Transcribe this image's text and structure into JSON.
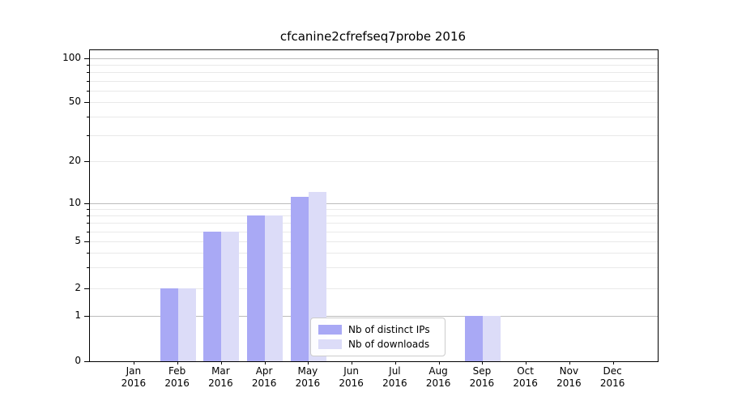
{
  "figure": {
    "background": "#ffffff"
  },
  "chart_data": {
    "type": "bar",
    "title": "cfcanine2cfrefseq7probe 2016",
    "xlabel": "",
    "ylabel": "",
    "categories": [
      "Jan 2016",
      "Feb 2016",
      "Mar 2016",
      "Apr 2016",
      "May 2016",
      "Jun 2016",
      "Jul 2016",
      "Aug 2016",
      "Sep 2016",
      "Oct 2016",
      "Nov 2016",
      "Dec 2016"
    ],
    "x_tick_line1": [
      "Jan",
      "Feb",
      "Mar",
      "Apr",
      "May",
      "Jun",
      "Jul",
      "Aug",
      "Sep",
      "Oct",
      "Nov",
      "Dec"
    ],
    "x_tick_line2": [
      "2016",
      "2016",
      "2016",
      "2016",
      "2016",
      "2016",
      "2016",
      "2016",
      "2016",
      "2016",
      "2016",
      "2016"
    ],
    "series": [
      {
        "name": "Nb of distinct IPs",
        "color": "#a9a9f5",
        "values": [
          0,
          2,
          6,
          8,
          11,
          0,
          0,
          0,
          1,
          0,
          0,
          0
        ]
      },
      {
        "name": "Nb of downloads",
        "color": "#dcdcf8",
        "values": [
          0,
          2,
          6,
          8,
          12,
          0,
          0,
          0,
          1,
          0,
          0,
          0
        ]
      }
    ],
    "y_axis": {
      "scale": "log-like (0 pinned at baseline)",
      "range": [
        0,
        100
      ],
      "labeled_ticks": [
        0,
        1,
        2,
        5,
        10,
        20,
        50,
        100
      ],
      "major_gridlines": [
        1,
        10,
        100
      ],
      "minor_gridlines": [
        2,
        3,
        4,
        5,
        6,
        7,
        8,
        9,
        20,
        30,
        40,
        50,
        60,
        70,
        80,
        90
      ]
    },
    "legend": {
      "position": "lower center",
      "border_color": "#cccccc",
      "background": "#ffffff"
    },
    "grid": "on",
    "colors": {
      "major_grid": "#bcbcbc",
      "minor_grid": "#e9e9e9",
      "spine": "#000000",
      "text": "#000000"
    }
  }
}
